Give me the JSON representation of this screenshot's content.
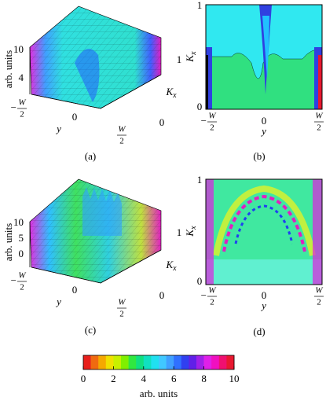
{
  "panels": [
    {
      "label": "(a)",
      "kind": "surface",
      "z_label": "arb. units",
      "z_ticks": [
        10,
        4
      ],
      "y_label": "y",
      "y_ticks": [
        {
          "sign": "−",
          "num": "W",
          "den": "2"
        },
        0,
        {
          "num": "W",
          "den": "2"
        }
      ],
      "k_label": "K",
      "k_sub": "x",
      "k_ticks": [
        1,
        0
      ]
    },
    {
      "label": "(b)",
      "kind": "contour",
      "x_label": "y",
      "x_ticks": [
        {
          "sign": "−",
          "num": "W",
          "den": "2"
        },
        0,
        {
          "num": "W",
          "den": "2"
        }
      ],
      "k_label": "K",
      "k_sub": "x",
      "k_ticks": [
        1,
        0
      ]
    },
    {
      "label": "(c)",
      "kind": "surface",
      "z_label": "arb. units",
      "z_ticks": [
        10,
        5,
        0
      ],
      "y_label": "y",
      "y_ticks": [
        {
          "sign": "−",
          "num": "W",
          "den": "2"
        },
        0,
        {
          "num": "W",
          "den": "2"
        }
      ],
      "k_label": "K",
      "k_sub": "x",
      "k_ticks": [
        1,
        0
      ]
    },
    {
      "label": "(d)",
      "kind": "contour",
      "x_label": "y",
      "x_ticks": [
        {
          "sign": "−",
          "num": "W",
          "den": "2"
        },
        0,
        {
          "num": "W",
          "den": "2"
        }
      ],
      "k_label": "K",
      "k_sub": "x",
      "k_ticks": [
        1,
        0
      ]
    }
  ],
  "colorbar": {
    "lim": [
      0,
      10
    ],
    "ticks": [
      0,
      2,
      4,
      6,
      8,
      10
    ],
    "label": "arb. units",
    "colors": [
      "#e8201c",
      "#f06a10",
      "#f5a800",
      "#f0e000",
      "#c8f000",
      "#80f000",
      "#30e840",
      "#10e080",
      "#10e0c0",
      "#20e0f0",
      "#40c8ff",
      "#40a0ff",
      "#3070ff",
      "#3040f0",
      "#6020e8",
      "#a020e8",
      "#e020e8",
      "#f010c0",
      "#f01070",
      "#e81830"
    ]
  }
}
